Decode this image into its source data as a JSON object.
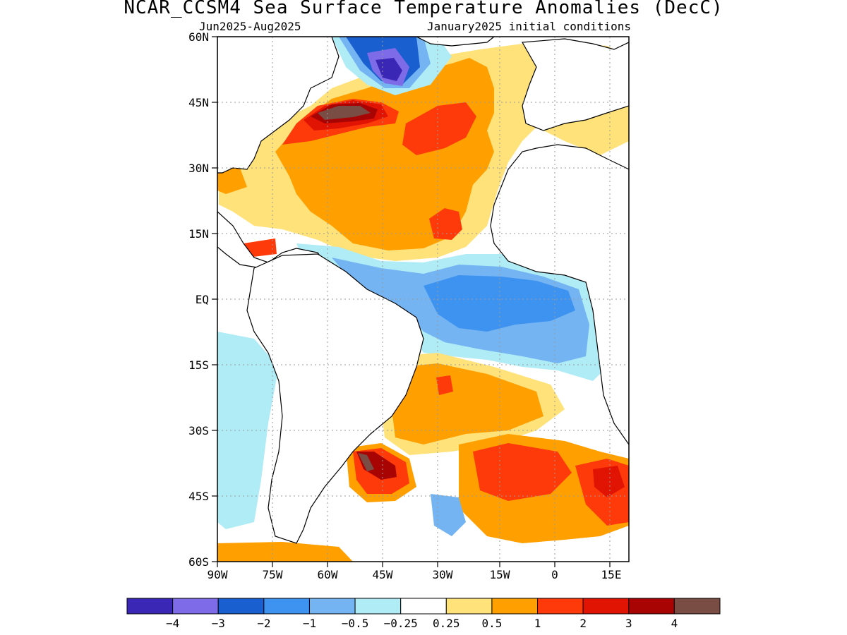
{
  "title": "NCAR_CCSM4 Sea Surface Temperature Anomalies (DecC)",
  "subtitle_left": "Jun2025-Aug2025",
  "subtitle_right": "January2025 initial conditions",
  "map": {
    "lat_labels": [
      "60N",
      "45N",
      "30N",
      "15N",
      "EQ",
      "15S",
      "30S",
      "45S",
      "60S"
    ],
    "lon_labels": [
      "90W",
      "75W",
      "60W",
      "45W",
      "30W",
      "15W",
      "0",
      "15E"
    ],
    "land_color": "#ffffff",
    "coast_color": "#000000"
  },
  "colorbar": {
    "colors": [
      "#3a27b5",
      "#7d6be8",
      "#1a5fcf",
      "#3d93ef",
      "#74b4f2",
      "#b0ecf6",
      "#ffffff",
      "#ffe27a",
      "#ffa000",
      "#ff3a0a",
      "#e11404",
      "#a80404",
      "#7a4d44"
    ],
    "labels": [
      "−4",
      "−3",
      "−2",
      "−1",
      "−0.5",
      "−0.25",
      "0.25",
      "0.5",
      "1",
      "2",
      "3",
      "4"
    ]
  }
}
